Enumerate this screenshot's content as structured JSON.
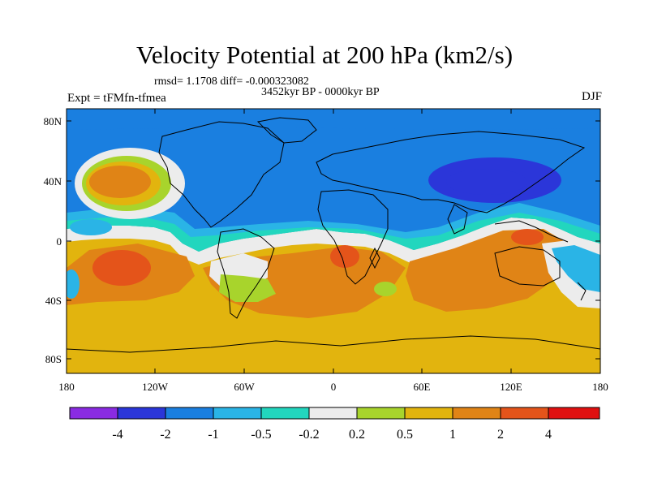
{
  "title": "Velocity Potential at 200 hPa (km2/s)",
  "stats_line": "rmsd= 1.1708 diff= -0.000323082",
  "period": "3452kyr BP - 0000kyr BP",
  "experiment": "Expt = tFMfn-tfmea",
  "season": "DJF",
  "lat_ticks": [
    "80N",
    "40N",
    "0",
    "40S",
    "80S"
  ],
  "lon_ticks": [
    "180",
    "120W",
    "60W",
    "0",
    "60E",
    "120E",
    "180"
  ],
  "colorbar": {
    "labels": [
      "-4",
      "-2",
      "-1",
      "-0.5",
      "-0.2",
      "0.2",
      "0.5",
      "1",
      "2",
      "4"
    ],
    "colors": [
      "#8a2be2",
      "#2b36d9",
      "#1a7fe0",
      "#2ab4e6",
      "#22d6be",
      "#ececec",
      "#a8d42c",
      "#e2b40e",
      "#e08416",
      "#e4541a",
      "#e01010"
    ]
  }
}
